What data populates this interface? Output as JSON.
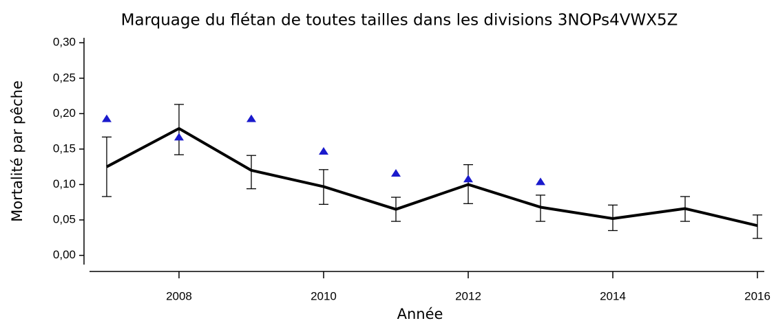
{
  "chart_data": {
    "type": "line",
    "title": "Marquage du flétan de toutes tailles dans les divisions 3NOPs4VWX5Z",
    "x_label": "Année",
    "y_label": "Mortalité par pêche",
    "x": [
      2007,
      2008,
      2009,
      2010,
      2011,
      2012,
      2013,
      2014,
      2015,
      2016
    ],
    "series": [
      {
        "color": "#000000",
        "values": [
          0.125,
          0.179,
          0.12,
          0.097,
          0.065,
          0.1,
          0.068,
          0.052,
          0.066,
          0.042
        ],
        "lower": [
          0.083,
          0.142,
          0.094,
          0.072,
          0.048,
          0.073,
          0.048,
          0.035,
          0.048,
          0.024
        ],
        "upper": [
          0.167,
          0.213,
          0.141,
          0.121,
          0.082,
          0.128,
          0.085,
          0.071,
          0.083,
          0.057
        ]
      },
      {
        "type": "scatter",
        "marker": "triangle",
        "color": "#1a1acc",
        "values": [
          0.193,
          0.167,
          0.193,
          0.147,
          0.116,
          0.108,
          0.104,
          null,
          null,
          null
        ]
      }
    ],
    "xlim": [
      2006.686,
      2016.095
    ],
    "ylim": [
      -0.013,
      0.307
    ],
    "xticks": [
      2008,
      2010,
      2012,
      2014,
      2016
    ],
    "yticks": [
      {
        "value": 0,
        "label": "0,00"
      },
      {
        "value": 0.05,
        "label": "0,05"
      },
      {
        "value": 0.1,
        "label": "0,10"
      },
      {
        "value": 0.15,
        "label": "0,15"
      },
      {
        "value": 0.2,
        "label": "0,20"
      },
      {
        "value": 0.25,
        "label": "0,25"
      },
      {
        "value": 0.3,
        "label": "0,30"
      }
    ]
  }
}
